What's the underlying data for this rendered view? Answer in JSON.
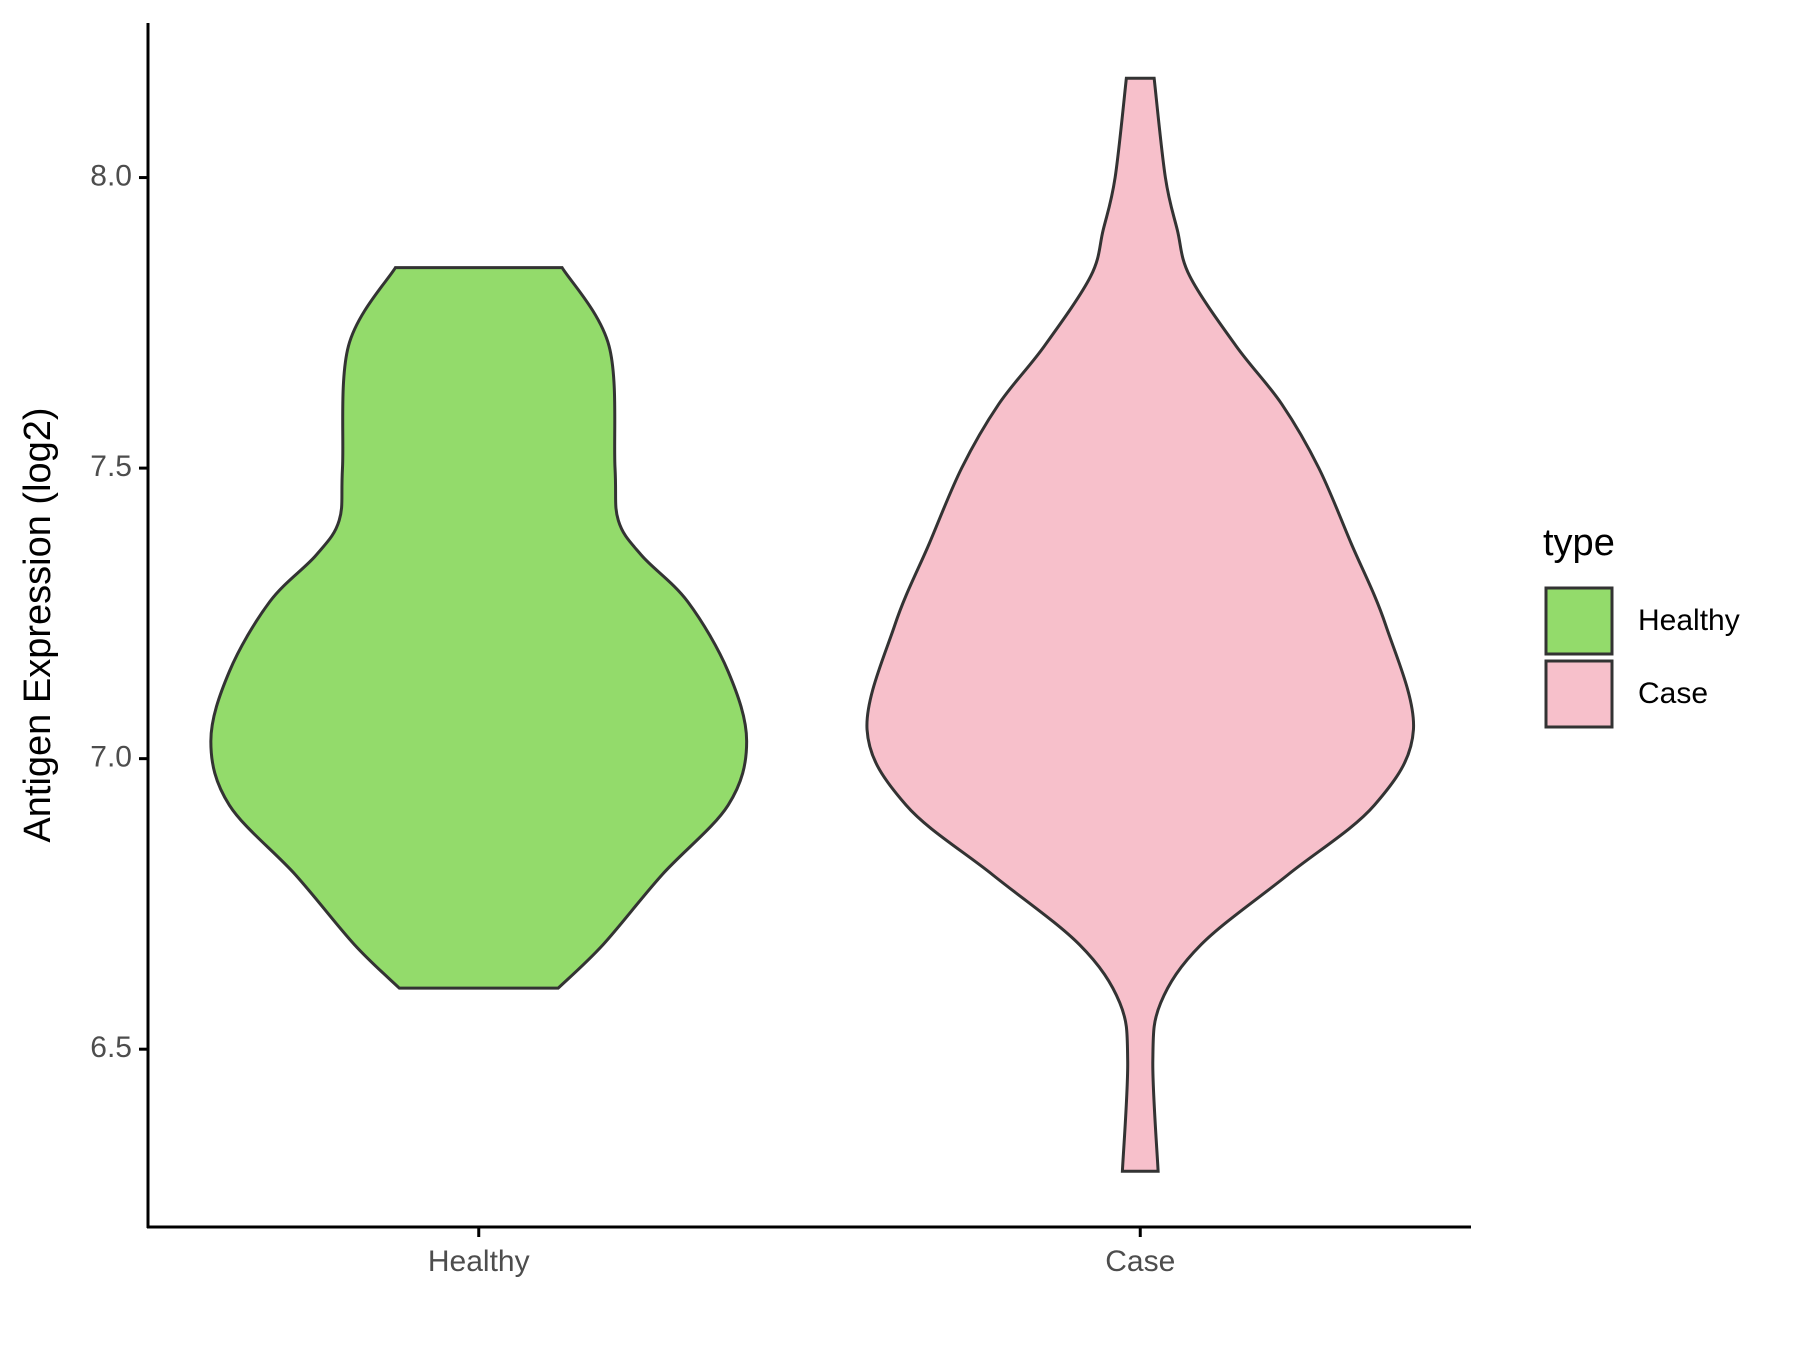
{
  "chart_data": {
    "type": "violin",
    "y_label": "Antigen Expression (log2)",
    "categories": [
      "Healthy",
      "Case"
    ],
    "legend_title": "type",
    "legend_position": "right",
    "ylim": [
      6.194,
      8.266
    ],
    "yticks": [
      {
        "value": 6.5,
        "label": "6.5"
      },
      {
        "value": 7,
        "label": "7.0"
      },
      {
        "value": 7.5,
        "label": "7.5"
      },
      {
        "value": 8,
        "label": "8.0"
      }
    ],
    "series": [
      {
        "name": "Healthy",
        "color": "#93db6b",
        "y": [
          7.845,
          7.71,
          7.5,
          7.41,
          7.35,
          7.27,
          7.15,
          7.03,
          6.92,
          6.8,
          6.68,
          6.605
        ],
        "half_width": [
          0.126,
          0.197,
          0.206,
          0.211,
          0.246,
          0.316,
          0.377,
          0.405,
          0.377,
          0.277,
          0.188,
          0.12
        ]
      },
      {
        "name": "Case",
        "color": "#f7c0cb",
        "y": [
          8.171,
          8.0,
          7.91,
          7.83,
          7.71,
          7.61,
          7.5,
          7.37,
          7.23,
          7.05,
          6.92,
          6.8,
          6.68,
          6.58,
          6.48,
          6.29
        ],
        "half_width": [
          0.021,
          0.038,
          0.056,
          0.075,
          0.145,
          0.214,
          0.27,
          0.319,
          0.371,
          0.413,
          0.354,
          0.223,
          0.092,
          0.031,
          0.019,
          0.027
        ]
      }
    ]
  }
}
